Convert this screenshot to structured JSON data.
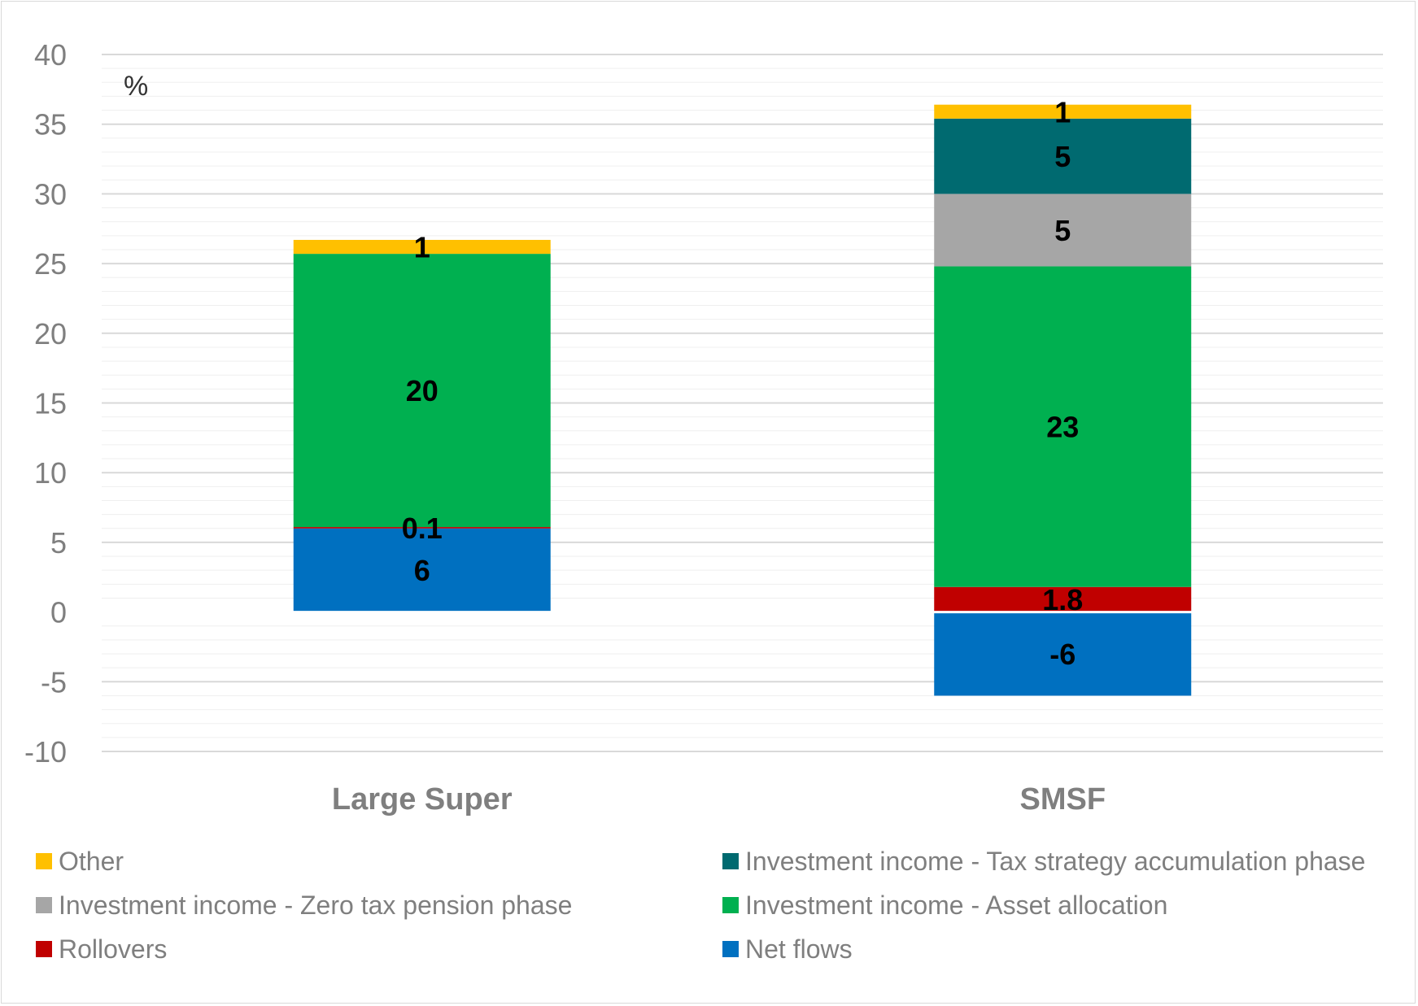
{
  "chart_data": {
    "type": "bar",
    "stacked": true,
    "categories": [
      "Large Super",
      "SMSF"
    ],
    "unit_label": "%",
    "ylim": [
      -10,
      40
    ],
    "yticks": [
      40,
      35,
      30,
      25,
      20,
      15,
      10,
      5,
      0,
      -5,
      -10
    ],
    "grid": true,
    "legend_position": "bottom",
    "series": [
      {
        "name": "Net flows",
        "color": "#0070c0",
        "values": [
          6,
          -6
        ],
        "labels": [
          "6",
          "-6"
        ]
      },
      {
        "name": "Rollovers",
        "color": "#c00000",
        "values": [
          0.1,
          1.8
        ],
        "labels": [
          "0.1",
          "1.8"
        ]
      },
      {
        "name": "Investment income - Asset allocation",
        "color": "#00b050",
        "values": [
          19.6,
          23
        ],
        "labels": [
          "20",
          "23"
        ]
      },
      {
        "name": "Investment income - Zero tax pension phase",
        "color": "#a6a6a6",
        "values": [
          0,
          5.2
        ],
        "labels": [
          "",
          "5"
        ]
      },
      {
        "name": "Investment income - Tax strategy accumulation phase",
        "color": "#006a70",
        "values": [
          0,
          5.4
        ],
        "labels": [
          "",
          "5"
        ]
      },
      {
        "name": "Other",
        "color": "#ffc000",
        "values": [
          1,
          1
        ],
        "labels": [
          "1",
          "1"
        ]
      }
    ],
    "legend_order": [
      5,
      4,
      3,
      2,
      1,
      0
    ]
  }
}
